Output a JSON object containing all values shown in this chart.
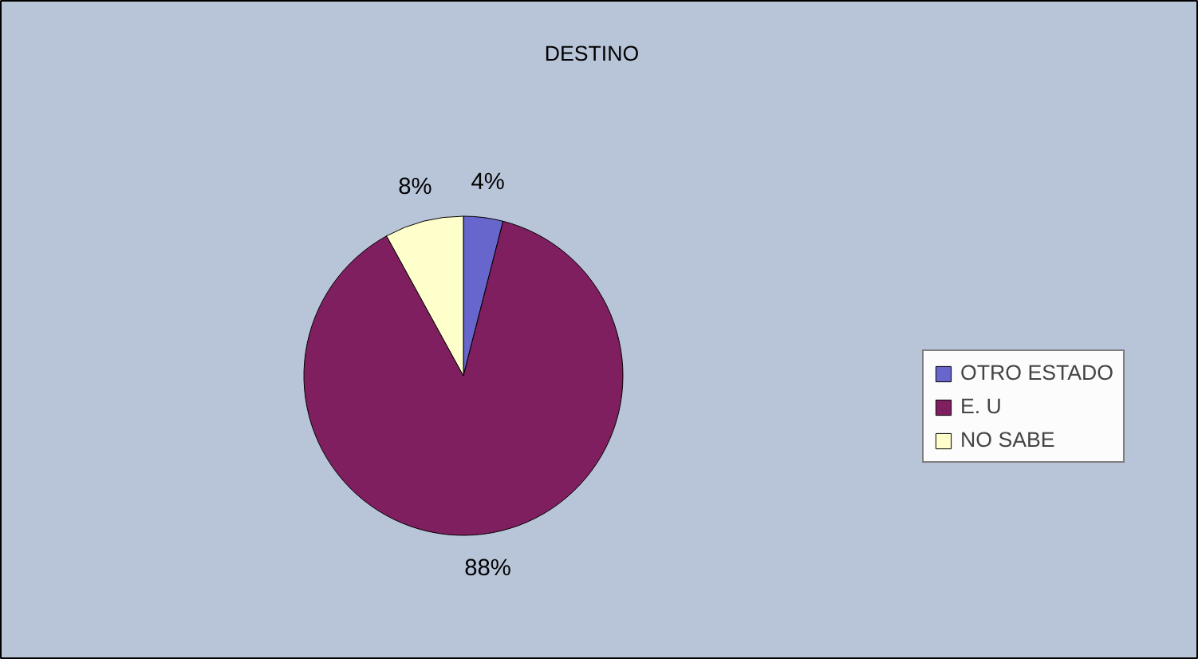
{
  "chart_data": {
    "type": "pie",
    "title": "DESTINO",
    "categories": [
      "OTRO ESTADO",
      "E. U",
      "NO SABE"
    ],
    "values": [
      4,
      88,
      8
    ],
    "colors": [
      "#6666cc",
      "#7f1f5f",
      "#ffffcc"
    ],
    "value_labels": [
      "4%",
      "88%",
      "8%"
    ],
    "legend": "right"
  }
}
